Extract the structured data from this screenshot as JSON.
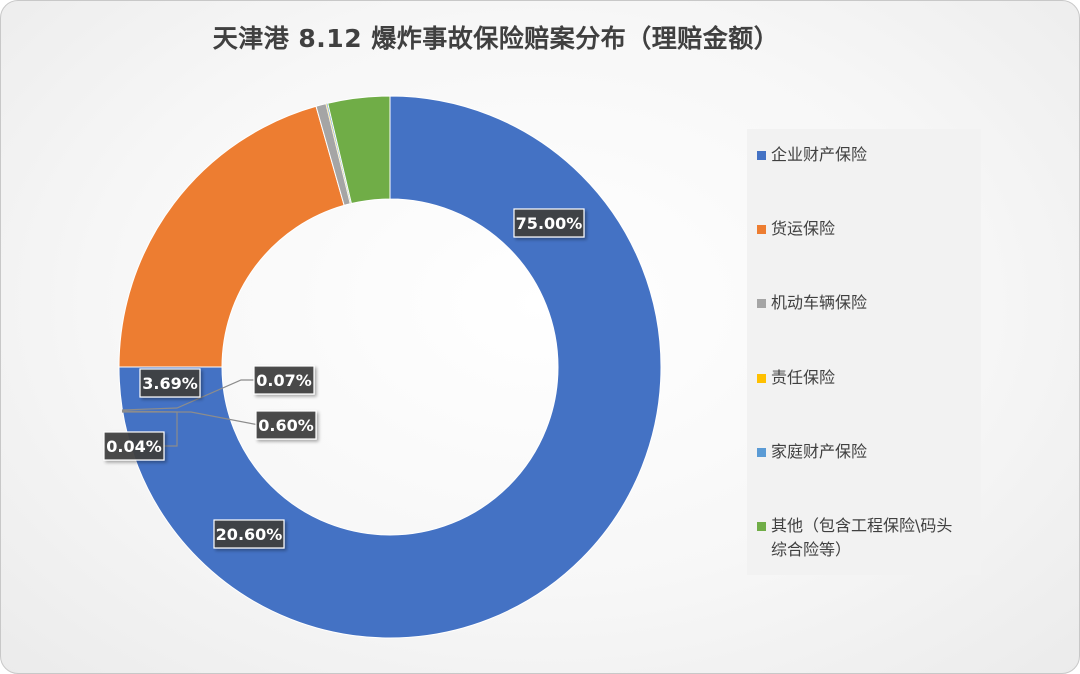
{
  "chart_data": {
    "type": "pie",
    "variant": "donut",
    "title": "天津港 8.12 爆炸事故保险赔案分布（理赔金额）",
    "categories": [
      "企业财产保险",
      "货运保险",
      "机动车辆保险",
      "责任保险",
      "家庭财产保险",
      "其他（包含工程保险\\码头综合险等）"
    ],
    "legend_labels": [
      "企业财产保险",
      "货运保险",
      "机动车辆保险",
      "责任保险",
      "家庭财产保险",
      "其他（包含工程保险\\码头\n综合险等）"
    ],
    "values": [
      75.0,
      20.6,
      0.6,
      0.04,
      0.07,
      3.69
    ],
    "data_labels": [
      "75.00%",
      "20.60%",
      "0.60%",
      "0.04%",
      "0.07%",
      "3.69%"
    ],
    "colors": [
      "#4472c4",
      "#ed7d31",
      "#a5a5a5",
      "#ffc000",
      "#5b9bd5",
      "#70ad47"
    ],
    "legend_position": "right"
  }
}
